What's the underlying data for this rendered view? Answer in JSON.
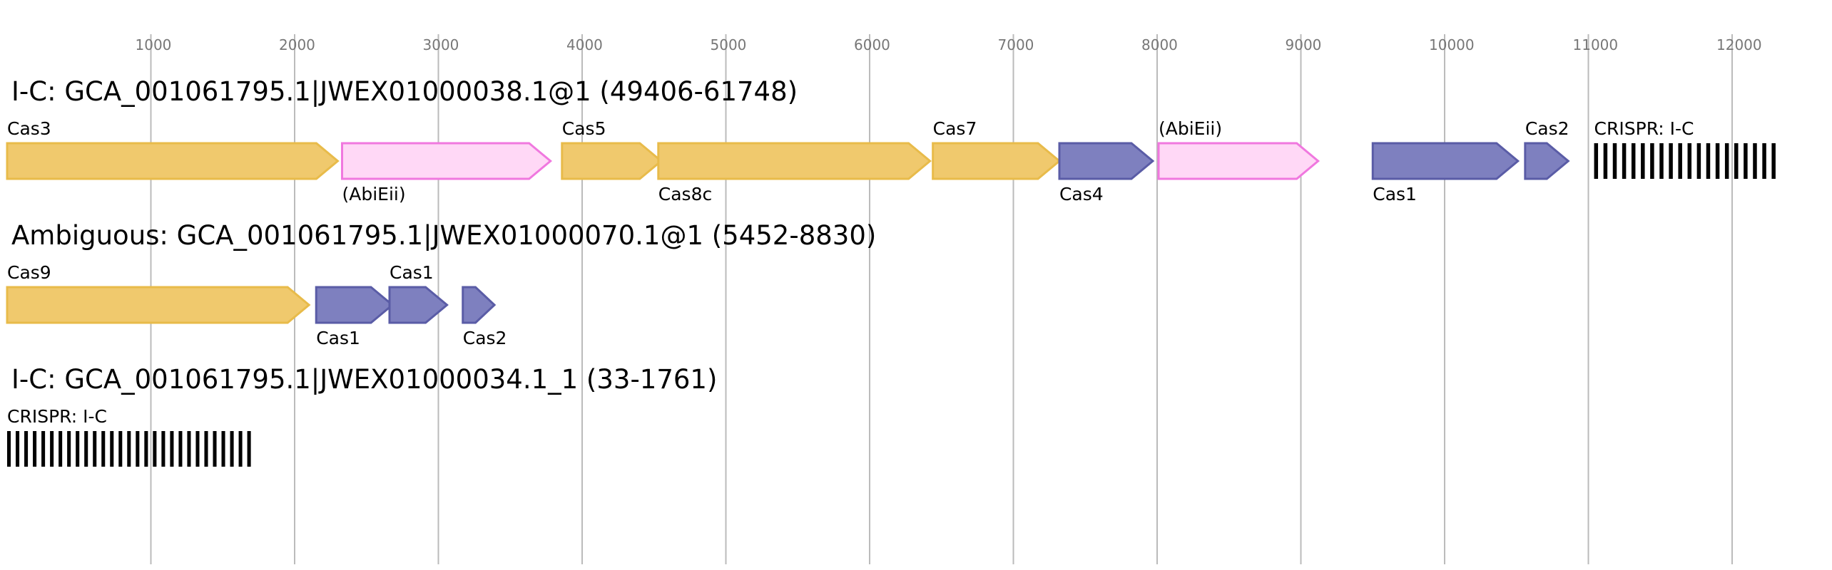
{
  "colors": {
    "core": {
      "fill": "#f0c96d",
      "stroke": "#e8bb4a"
    },
    "ancillary": {
      "fill": "#7e80bf",
      "stroke": "#5a5ca6"
    },
    "other": {
      "fill": "#ffd8f6",
      "stroke": "#f078df"
    },
    "crispr": "#000000",
    "grid": "#bbbbbb",
    "tick_text": "#777777"
  },
  "axis": {
    "ticks": [
      {
        "value": 1000,
        "label": "1000"
      },
      {
        "value": 2000,
        "label": "2000"
      },
      {
        "value": 3000,
        "label": "3000"
      },
      {
        "value": 4000,
        "label": "4000"
      },
      {
        "value": 5000,
        "label": "5000"
      },
      {
        "value": 6000,
        "label": "6000"
      },
      {
        "value": 7000,
        "label": "7000"
      },
      {
        "value": 8000,
        "label": "8000"
      },
      {
        "value": 9000,
        "label": "9000"
      },
      {
        "value": 10000,
        "label": "10000"
      },
      {
        "value": 11000,
        "label": "11000"
      },
      {
        "value": 12000,
        "label": "12000"
      }
    ]
  },
  "tracks": [
    {
      "title": "I-C: GCA_001061795.1|JWEX01000038.1@1 (49406-61748)",
      "features": [
        {
          "kind": "gene",
          "label": "Cas3",
          "start": 0,
          "end": 2300,
          "category": "core",
          "label_pos": "above"
        },
        {
          "kind": "gene",
          "label": "(AbiEii)",
          "start": 2330,
          "end": 3780,
          "category": "other",
          "label_pos": "below"
        },
        {
          "kind": "gene",
          "label": "Cas5",
          "start": 3860,
          "end": 4550,
          "category": "core",
          "label_pos": "above"
        },
        {
          "kind": "gene",
          "label": "Cas8c",
          "start": 4530,
          "end": 6420,
          "category": "core",
          "label_pos": "below"
        },
        {
          "kind": "gene",
          "label": "Cas7",
          "start": 6440,
          "end": 7320,
          "category": "core",
          "label_pos": "above"
        },
        {
          "kind": "gene",
          "label": "Cas4",
          "start": 7320,
          "end": 7970,
          "category": "ancillary",
          "label_pos": "below"
        },
        {
          "kind": "gene",
          "label": "(AbiEii)",
          "start": 8010,
          "end": 9120,
          "category": "other",
          "label_pos": "above"
        },
        {
          "kind": "gene",
          "label": "Cas1",
          "start": 9500,
          "end": 10510,
          "category": "ancillary",
          "label_pos": "below"
        },
        {
          "kind": "gene",
          "label": "Cas2",
          "start": 10560,
          "end": 10860,
          "category": "ancillary",
          "label_pos": "above"
        },
        {
          "kind": "crispr",
          "label": "CRISPR: I-C",
          "start": 11040,
          "end": 12340,
          "repeats": 20,
          "label_pos": "above"
        }
      ]
    },
    {
      "title": "Ambiguous: GCA_001061795.1|JWEX01000070.1@1 (5452-8830)",
      "features": [
        {
          "kind": "gene",
          "label": "Cas9",
          "start": 0,
          "end": 2100,
          "category": "core",
          "label_pos": "above"
        },
        {
          "kind": "gene",
          "label": "Cas1",
          "start": 2150,
          "end": 2680,
          "category": "ancillary",
          "label_pos": "below"
        },
        {
          "kind": "gene",
          "label": "Cas1",
          "start": 2660,
          "end": 3060,
          "category": "ancillary",
          "label_pos": "above"
        },
        {
          "kind": "gene",
          "label": "Cas2",
          "start": 3170,
          "end": 3390,
          "category": "ancillary",
          "label_pos": "below"
        }
      ]
    },
    {
      "title": "I-C: GCA_001061795.1|JWEX01000034.1_1 (33-1761)",
      "features": [
        {
          "kind": "crispr",
          "label": "CRISPR: I-C",
          "start": 0,
          "end": 1730,
          "repeats": 29,
          "label_pos": "above"
        }
      ]
    }
  ]
}
